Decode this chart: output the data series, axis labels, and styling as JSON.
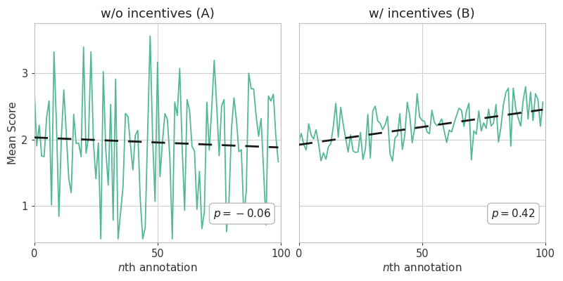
{
  "title_A": "w/o incentives (A)",
  "title_B": "w/ incentives (B)",
  "ylabel": "Mean Score",
  "annotation_A": "p = −0.06",
  "annotation_B": "p = 0.42",
  "line_color": "#52b898",
  "trend_color": "#1a1a1a",
  "xlim": [
    0,
    100
  ],
  "ylim": [
    0.45,
    3.75
  ],
  "yticks": [
    1,
    2,
    3
  ],
  "xticks": [
    0,
    50,
    100
  ],
  "trend_A_start": 2.03,
  "trend_A_end": 1.88,
  "trend_B_start": 1.92,
  "trend_B_end": 2.45,
  "bg_color": "#ffffff",
  "grid_color": "#d0d0d0",
  "n_points": 100,
  "line_width": 1.3,
  "trend_lw": 2.0,
  "figsize": [
    8.0,
    4.0
  ],
  "dpi": 100
}
